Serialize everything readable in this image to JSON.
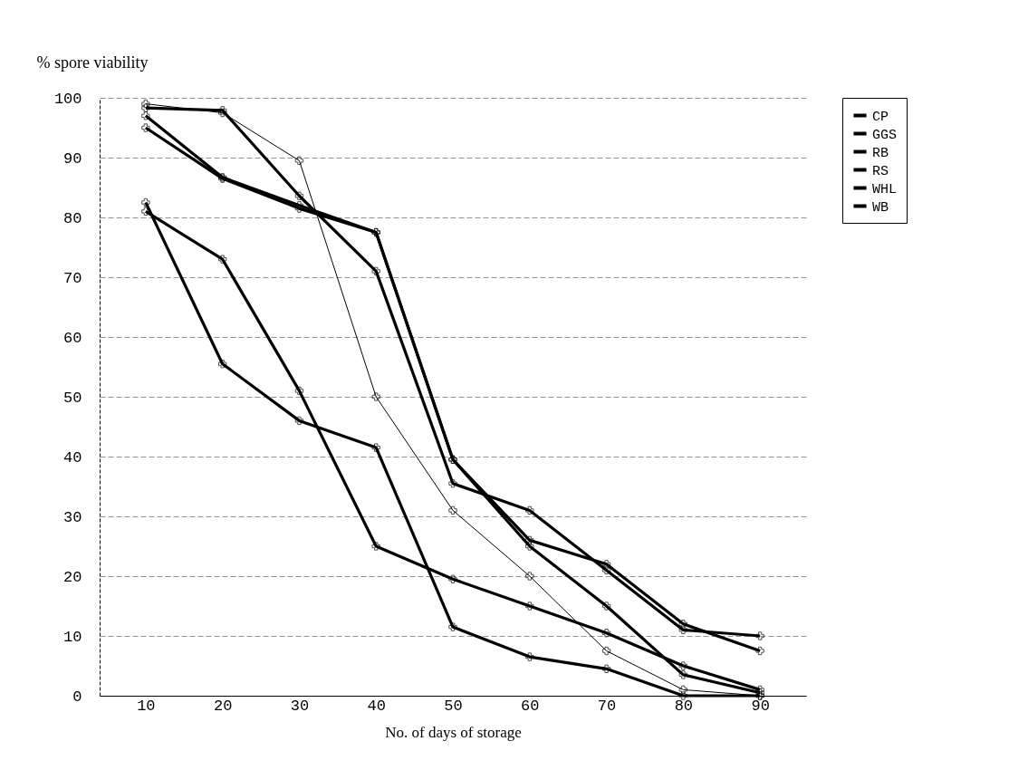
{
  "chart_data": {
    "type": "line",
    "xlabel": "No. of  days of storage",
    "ylabel": "% spore viability",
    "categories": [
      "10",
      "20",
      "30",
      "40",
      "50",
      "60",
      "70",
      "80",
      "90"
    ],
    "ylim": [
      0,
      100
    ],
    "yticks": [
      0,
      10,
      20,
      30,
      40,
      50,
      60,
      70,
      80,
      90,
      100
    ],
    "grid": "y",
    "legend": "right",
    "marker": "cross",
    "series": [
      {
        "name": "CP",
        "color": "#000000",
        "values": [
          98.3,
          97.9,
          83.6,
          71,
          35.5,
          31,
          21,
          11,
          10
        ]
      },
      {
        "name": "GGS",
        "color": "#000000",
        "values": [
          97,
          86.7,
          82,
          77.5,
          39.5,
          25,
          15,
          3.5,
          0.5
        ]
      },
      {
        "name": "RB",
        "color": "#000000",
        "values": [
          95,
          86.5,
          81.5,
          77.5,
          39.5,
          26,
          22,
          12,
          7.5
        ]
      },
      {
        "name": "RS",
        "color": "#000000",
        "values": [
          81,
          73,
          51,
          25,
          19.5,
          15,
          10.5,
          5,
          1
        ]
      },
      {
        "name": "WHL",
        "color": "#000000",
        "values": [
          99,
          97.5,
          89.5,
          50,
          31,
          20,
          7.5,
          1,
          0
        ]
      },
      {
        "name": "WB",
        "color": "#000000",
        "values": [
          82.5,
          55.5,
          46,
          41.5,
          11.5,
          6.5,
          4.5,
          0,
          0
        ]
      }
    ]
  }
}
